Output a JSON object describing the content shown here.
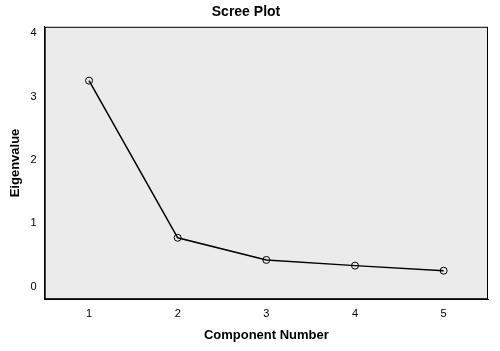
{
  "chart_data": {
    "type": "line",
    "title": "Scree Plot",
    "x_label": "Component Number",
    "y_label": "Eigenvalue",
    "x": [
      1,
      2,
      3,
      4,
      5
    ],
    "values": [
      3.25,
      0.77,
      0.42,
      0.33,
      0.25
    ],
    "color": "#000000",
    "marker": "circle",
    "line_style": "solid",
    "xlim": [
      0.5,
      5.5
    ],
    "xticks": [
      1,
      2,
      3,
      4,
      5
    ],
    "ylim": [
      -0.2,
      4.1
    ],
    "yticks": [
      0,
      1,
      2,
      3,
      4
    ],
    "grid": false
  }
}
